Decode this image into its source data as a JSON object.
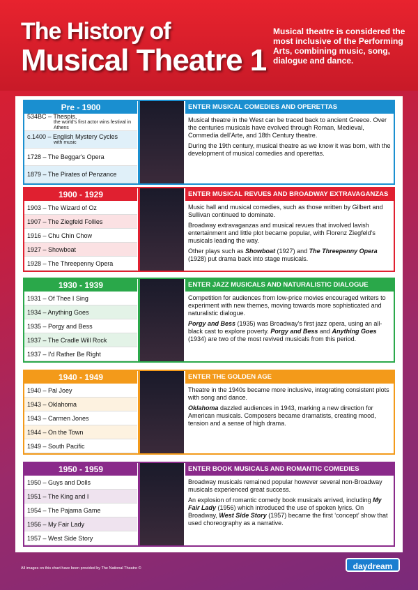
{
  "header": {
    "title_lines": [
      "The History of",
      "Musical Theatre 1"
    ],
    "intro": "Musical theatre is considered the most inclusive of the Performing Arts, combining music, song, dialogue and dance."
  },
  "sections": [
    {
      "period": "Pre - 1900",
      "heading": "ENTER MUSICAL COMEDIES AND OPERETTAS",
      "color": "#1a8fd0",
      "items": [
        {
          "text": "534BC – Thespis,",
          "note": "the world's first actor wins festival in Athens"
        },
        {
          "text": "c.1400 – English Mystery Cycles",
          "note": "with music"
        },
        {
          "text": "1728 – The Beggar's Opera"
        },
        {
          "text": "1879 – The Pirates of Penzance"
        }
      ],
      "paragraphs": [
        [
          "Musical theatre in the West can be traced back to ancient Greece. Over the centuries musicals have evolved through Roman, Medieval, Commedia dell'Arte, and 18th Century theatre."
        ],
        [
          "During the 19th century, musical theatre as we know it was born, with the development of musical comedies and operettas."
        ]
      ]
    },
    {
      "period": "1900 - 1929",
      "heading": "ENTER MUSICAL REVUES AND BROADWAY EXTRAVAGANZAS",
      "color": "#e02030",
      "items": [
        {
          "text": "1903 – The Wizard of Oz"
        },
        {
          "text": "1907 – The Ziegfeld Follies"
        },
        {
          "text": "1916 – Chu Chin Chow"
        },
        {
          "text": "1927 – Showboat"
        },
        {
          "text": "1928 – The Threepenny Opera"
        }
      ],
      "paragraphs": [
        [
          "Music hall and musical comedies, such as those written by Gilbert and Sullivan continued to dominate."
        ],
        [
          "Broadway extravaganzas and musical revues that involved lavish entertainment and little plot became popular, with Florenz Ziegfeld's musicals leading the way."
        ],
        [
          "Other plays such as ",
          {
            "em": "Showboat"
          },
          " (1927) and ",
          {
            "em": "The Threepenny Opera"
          },
          " (1928) put drama back into stage musicals."
        ]
      ]
    },
    {
      "period": "1930 - 1939",
      "heading": "ENTER JAZZ MUSICALS AND NATURALISTIC DIALOGUE",
      "color": "#2aa84a",
      "items": [
        {
          "text": "1931 – Of Thee I Sing"
        },
        {
          "text": "1934 – Anything Goes"
        },
        {
          "text": "1935 – Porgy and Bess"
        },
        {
          "text": "1937 – The Cradle Will Rock"
        },
        {
          "text": "1937 – I'd Rather Be Right"
        }
      ],
      "paragraphs": [
        [
          "Competition for audiences from low-price movies encouraged writers to experiment with new themes, moving towards more sophisticated and naturalistic dialogue."
        ],
        [
          {
            "em": "Porgy and Bess"
          },
          " (1935) was Broadway's first jazz opera, using an all-black cast to explore poverty. ",
          {
            "em": "Porgy and Bess"
          },
          " and ",
          {
            "em": "Anything Goes"
          },
          " (1934) are two of the most revived musicals from this period."
        ]
      ]
    },
    {
      "period": "1940 - 1949",
      "heading": "ENTER THE GOLDEN AGE",
      "color": "#f39a1a",
      "items": [
        {
          "text": "1940 – Pal Joey"
        },
        {
          "text": "1943 – Oklahoma"
        },
        {
          "text": "1943 – Carmen Jones"
        },
        {
          "text": "1944 – On the Town"
        },
        {
          "text": "1949 – South Pacific"
        }
      ],
      "paragraphs": [
        [
          "Theatre in the 1940s became more inclusive, integrating consistent plots with song and dance."
        ],
        [
          {
            "em": "Oklahoma"
          },
          " dazzled audiences in 1943, marking a new direction for American musicals. Composers became dramatists, creating mood, tension and a sense of high drama."
        ]
      ]
    },
    {
      "period": "1950 - 1959",
      "heading": "ENTER BOOK MUSICALS AND ROMANTIC COMEDIES",
      "color": "#8a2a8a",
      "items": [
        {
          "text": "1950 – Guys and Dolls"
        },
        {
          "text": "1951 – The King and I"
        },
        {
          "text": "1954 – The Pajama Game"
        },
        {
          "text": "1956 – My Fair Lady"
        },
        {
          "text": "1957 – West Side Story"
        }
      ],
      "paragraphs": [
        [
          "Broadway musicals remained popular however several non-Broadway musicals experienced great success."
        ],
        [
          "An explosion of romantic comedy book musicals arrived, including ",
          {
            "em": "My Fair Lady"
          },
          " (1956) which introduced the use of spoken lyrics. On Broadway, ",
          {
            "em": "West Side Story"
          },
          " (1957) became the first ‘concept’ show that used choreography as a narrative."
        ]
      ]
    }
  ],
  "footer": {
    "credit": "All images on this chart have been provided by The National Theatre ©",
    "logo": "daydream"
  }
}
